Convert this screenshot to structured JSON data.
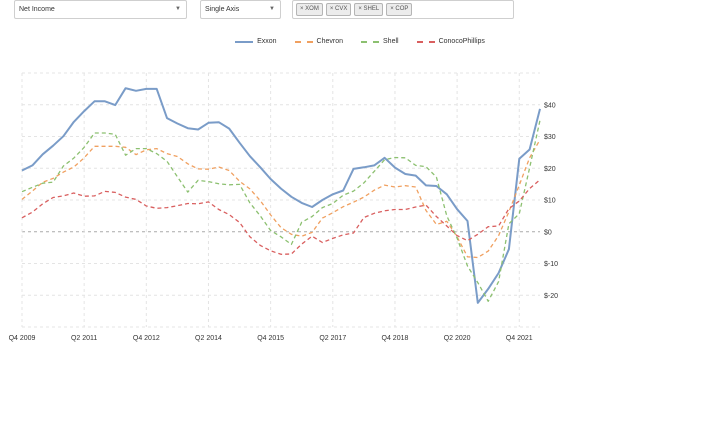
{
  "controls": {
    "metric_select": "Net Income",
    "axis_select": "Single Axis",
    "tickers": [
      "× XOM",
      "× CVX",
      "× SHEL",
      "× COP"
    ]
  },
  "colors": {
    "exxon": "#7a9cc8",
    "chevron": "#f0a060",
    "shell": "#8cc070",
    "conoco": "#d95f5f"
  },
  "chart_data": {
    "type": "line",
    "title": "",
    "xlabel": "",
    "ylabel": "",
    "ylim": [
      -30,
      50
    ],
    "x_tick_labels": [
      "Q4 2009",
      "Q2 2011",
      "Q4 2012",
      "Q2 2014",
      "Q4 2015",
      "Q2 2017",
      "Q4 2018",
      "Q2 2020",
      "Q4 2021"
    ],
    "y_tick_labels": [
      "$40",
      "$30",
      "$20",
      "$10",
      "$0",
      "$-10",
      "$-20"
    ],
    "y_tick_values": [
      40,
      30,
      20,
      10,
      0,
      -10,
      -20
    ],
    "x_start": "Q4 2009",
    "grid": true,
    "legend_position": "top",
    "series": [
      {
        "name": "Exxon",
        "style": "solid",
        "values": [
          19.3,
          20.9,
          24.4,
          27.1,
          30.1,
          34.6,
          38.0,
          41.1,
          41.1,
          39.9,
          45.2,
          44.4,
          45.0,
          45.0,
          35.8,
          34.1,
          32.6,
          32.2,
          34.3,
          34.5,
          32.5,
          28.0,
          23.8,
          20.3,
          16.6,
          13.6,
          11.0,
          9.1,
          7.8,
          10.0,
          11.8,
          13.0,
          19.8,
          20.3,
          20.9,
          23.3,
          20.2,
          18.2,
          17.7,
          14.6,
          14.4,
          11.8,
          7.1,
          3.4,
          -22.4,
          -18.0,
          -13.0,
          -5.5,
          23.0,
          25.9,
          38.7
        ]
      },
      {
        "name": "Chevron",
        "style": "dashed",
        "values": [
          10.2,
          12.8,
          15.6,
          16.8,
          18.8,
          20.4,
          23.3,
          26.9,
          26.9,
          26.9,
          26.6,
          24.3,
          25.8,
          26.2,
          24.6,
          23.7,
          21.4,
          19.8,
          19.7,
          20.4,
          19.3,
          15.9,
          13.5,
          9.8,
          5.3,
          1.3,
          -0.8,
          -1.4,
          -0.2,
          4.3,
          6.0,
          7.9,
          9.3,
          10.9,
          13.1,
          14.7,
          14.1,
          14.5,
          14.1,
          6.7,
          2.3,
          3.3,
          -1.6,
          -7.9,
          -8.1,
          -6.1,
          -1.2,
          6.3,
          14.7,
          23.3,
          29.0
        ]
      },
      {
        "name": "Shell",
        "style": "dashed",
        "values": [
          12.6,
          14.0,
          15.3,
          15.6,
          20.7,
          23.2,
          26.6,
          31.1,
          31.1,
          30.7,
          24.1,
          26.2,
          26.2,
          24.6,
          22.2,
          17.3,
          12.5,
          16.2,
          15.8,
          15.1,
          14.8,
          14.9,
          9.1,
          5.0,
          0.4,
          -1.6,
          -4.0,
          3.0,
          4.8,
          7.6,
          8.9,
          11.5,
          12.8,
          15.4,
          19.0,
          22.7,
          23.4,
          23.3,
          20.9,
          20.5,
          17.2,
          5.0,
          -2.0,
          -10.8,
          -16.0,
          -21.9,
          -15.7,
          2.5,
          5.7,
          20.1,
          35.1
        ]
      },
      {
        "name": "ConocoPhillips",
        "style": "dashed",
        "values": [
          4.4,
          6.2,
          8.8,
          10.8,
          11.3,
          12.2,
          11.2,
          11.3,
          12.7,
          12.4,
          10.9,
          10.2,
          8.1,
          7.4,
          7.6,
          8.2,
          8.9,
          8.8,
          9.4,
          7.0,
          5.4,
          2.9,
          -1.6,
          -4.3,
          -6.0,
          -7.1,
          -7.0,
          -3.9,
          -1.4,
          -3.4,
          -2.1,
          -1.0,
          -0.4,
          4.5,
          5.8,
          6.6,
          7.0,
          7.0,
          7.8,
          8.4,
          4.8,
          1.8,
          -1.2,
          -2.8,
          -0.8,
          1.6,
          1.8,
          7.3,
          9.7,
          13.6,
          16.4
        ]
      }
    ]
  }
}
